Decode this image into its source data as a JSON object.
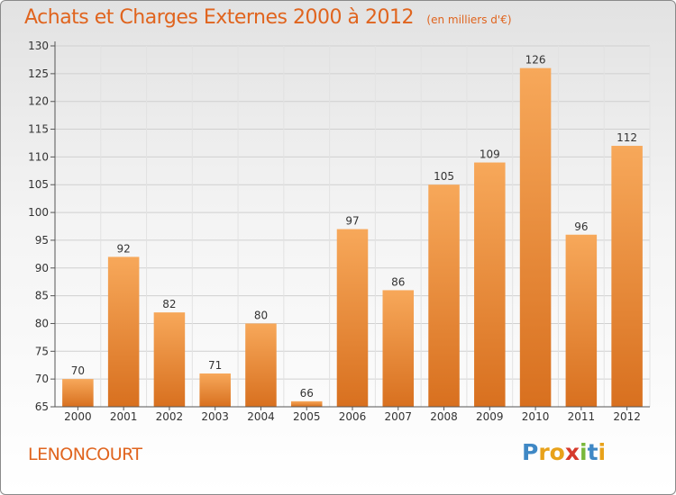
{
  "header": {
    "title": "Achats et Charges Externes 2000 à 2012",
    "subtitle": "(en milliers d'€)"
  },
  "footer": {
    "commune": "LENONCOURT",
    "logo_letters": [
      {
        "ch": "P",
        "color": "#3f88c5"
      },
      {
        "ch": "r",
        "color": "#e8a21a"
      },
      {
        "ch": "o",
        "color": "#e8a21a"
      },
      {
        "ch": "x",
        "color": "#d63a2c"
      },
      {
        "ch": "i",
        "color": "#7ab83b"
      },
      {
        "ch": "t",
        "color": "#3f88c5"
      },
      {
        "ch": "i",
        "color": "#e8a21a"
      }
    ]
  },
  "chart_data": {
    "type": "bar",
    "title": "Achats et Charges Externes 2000 à 2012",
    "subtitle": "(en milliers d'€)",
    "xlabel": "",
    "ylabel": "",
    "categories": [
      "2000",
      "2001",
      "2002",
      "2003",
      "2004",
      "2005",
      "2006",
      "2007",
      "2008",
      "2009",
      "2010",
      "2011",
      "2012"
    ],
    "values": [
      70,
      92,
      82,
      71,
      80,
      66,
      97,
      86,
      105,
      109,
      126,
      96,
      112
    ],
    "ylim": [
      65,
      130
    ],
    "yticks": [
      65,
      70,
      75,
      80,
      85,
      90,
      95,
      100,
      105,
      110,
      115,
      120,
      125,
      130
    ],
    "grid": "horizontal",
    "legend": "none",
    "bar_color_top": "#f7a85a",
    "bar_color_bottom": "#d8701f"
  }
}
